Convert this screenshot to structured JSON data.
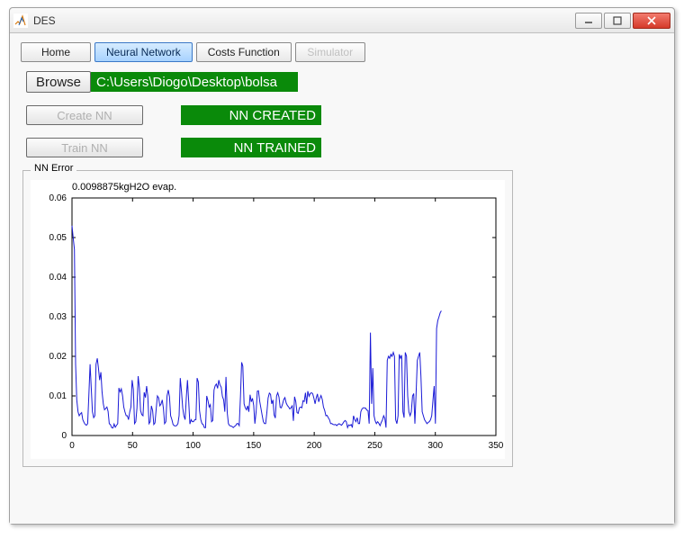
{
  "window": {
    "title": "DES"
  },
  "tabs": {
    "home": "Home",
    "nn": "Neural Network",
    "costs": "Costs Function",
    "sim": "Simulator",
    "active": "nn",
    "disabled": [
      "sim"
    ]
  },
  "browse": {
    "button": "Browse",
    "path": "C:\\Users\\Diogo\\Desktop\\bolsa"
  },
  "create": {
    "button": "Create NN",
    "status": "NN CREATED"
  },
  "train": {
    "button": "Train NN",
    "status": "NN TRAINED"
  },
  "group": {
    "label": "NN Error"
  },
  "chart": {
    "type": "line",
    "title": "0.0098875kgH2O evap.",
    "title_fontsize": 11,
    "xlim": [
      0,
      350
    ],
    "ylim": [
      0,
      0.06
    ],
    "xtick_step": 50,
    "ytick_step": 0.01,
    "line_color": "#1a1ad6",
    "background_color": "#ffffff",
    "axis_color": "#000000",
    "x_values_max": 305,
    "series": [
      0.053,
      0.05,
      0.047,
      0.018,
      0.009,
      0.006,
      0.005,
      0.0055,
      0.0058,
      0.004,
      0.0033,
      0.0028,
      0.0026,
      0.003,
      0.01,
      0.018,
      0.012,
      0.006,
      0.0045,
      0.005,
      0.018,
      0.0195,
      0.017,
      0.014,
      0.016,
      0.011,
      0.008,
      0.0065,
      0.0068,
      0.0072,
      0.0061,
      0.003,
      0.0027,
      0.002,
      0.0019,
      0.0029,
      0.0021,
      0.0026,
      0.003,
      0.012,
      0.011,
      0.0118,
      0.01,
      0.0072,
      0.006,
      0.005,
      0.005,
      0.004,
      0.006,
      0.0072,
      0.014,
      0.0117,
      0.003,
      0.0035,
      0.007,
      0.015,
      0.012,
      0.0063,
      0.0053,
      0.005,
      0.0109,
      0.0096,
      0.0125,
      0.01,
      0.003,
      0.0035,
      0.0075,
      0.0063,
      0.0028,
      0.0032,
      0.0068,
      0.01,
      0.0095,
      0.0075,
      0.0079,
      0.009,
      0.0068,
      0.003,
      0.0035,
      0.01,
      0.0115,
      0.0098,
      0.005,
      0.004,
      0.0028,
      0.0025,
      0.0024,
      0.0025,
      0.003,
      0.005,
      0.0145,
      0.011,
      0.007,
      0.005,
      0.004,
      0.0095,
      0.014,
      0.0085,
      0.0029,
      0.004,
      0.0035,
      0.0035,
      0.004,
      0.004,
      0.0145,
      0.0135,
      0.0063,
      0.004,
      0.003,
      0.0028,
      0.002,
      0.002,
      0.01,
      0.0088,
      0.0072,
      0.0078,
      0.0035,
      0.0038,
      0.0115,
      0.0126,
      0.013,
      0.0119,
      0.014,
      0.0128,
      0.0122,
      0.0099,
      0.009,
      0.006,
      0.0148,
      0.0058,
      0.003,
      0.0025,
      0.0024,
      0.0023,
      0.002,
      0.0023,
      0.0025,
      0.003,
      0.003,
      0.0025,
      0.01,
      0.0185,
      0.0175,
      0.008,
      0.007,
      0.0065,
      0.0075,
      0.006,
      0.0103,
      0.0085,
      0.0094,
      0.0076,
      0.003,
      0.006,
      0.0112,
      0.0113,
      0.0086,
      0.0069,
      0.0052,
      0.0035,
      0.003,
      0.003,
      0.006,
      0.0095,
      0.0107,
      0.0104,
      0.008,
      0.009,
      0.0052,
      0.0044,
      0.01,
      0.0108,
      0.0097,
      0.0071,
      0.007,
      0.008,
      0.0091,
      0.0096,
      0.0082,
      0.0076,
      0.0072,
      0.0067,
      0.007,
      0.0075,
      0.0037,
      0.0098,
      0.0085,
      0.0058,
      0.0056,
      0.007,
      0.0072,
      0.007,
      0.0088,
      0.0086,
      0.0108,
      0.008,
      0.0112,
      0.0099,
      0.0106,
      0.0108,
      0.0106,
      0.0095,
      0.008,
      0.0095,
      0.0105,
      0.0085,
      0.0094,
      0.0101,
      0.0091,
      0.0072,
      0.0063,
      0.005,
      0.0051,
      0.0045,
      0.004,
      0.003,
      0.003,
      0.0028,
      0.0027,
      0.0028,
      0.0025,
      0.0028,
      0.003,
      0.0028,
      0.0026,
      0.003,
      0.0035,
      0.0038,
      0.0035,
      0.002,
      0.0027,
      0.0025,
      0.0028,
      0.002,
      0.005,
      0.004,
      0.0035,
      0.0045,
      0.003,
      0.003,
      0.006,
      0.0067,
      0.007,
      0.007,
      0.0069,
      0.0064,
      0.0063,
      0.003,
      0.026,
      0.008,
      0.017,
      0.005,
      0.0037,
      0.003,
      0.0035,
      0.0031,
      0.0025,
      0.0033,
      0.0039,
      0.005,
      0.0043,
      0.002,
      0.019,
      0.02,
      0.0195,
      0.0205,
      0.02,
      0.021,
      0.02,
      0.004,
      0.003,
      0.005,
      0.0205,
      0.0195,
      0.0203,
      0.006,
      0.0045,
      0.021,
      0.02,
      0.01,
      0.006,
      0.005,
      0.006,
      0.01,
      0.0106,
      0.003,
      0.011,
      0.019,
      0.02,
      0.021,
      0.015,
      0.006,
      0.005,
      0.004,
      0.0035,
      0.003,
      0.0033,
      0.0035,
      0.004,
      0.005,
      0.009,
      0.0125,
      0.003,
      0.027,
      0.029,
      0.03,
      0.031,
      0.0315
    ]
  },
  "colors": {
    "status_bg": "#0a8a0a",
    "status_fg": "#ffffff",
    "tab_active_bg_top": "#d6ecff",
    "tab_active_bg_bot": "#a7d2ff",
    "close_bg_top": "#f37b6e",
    "close_bg_bot": "#d43a2a"
  }
}
